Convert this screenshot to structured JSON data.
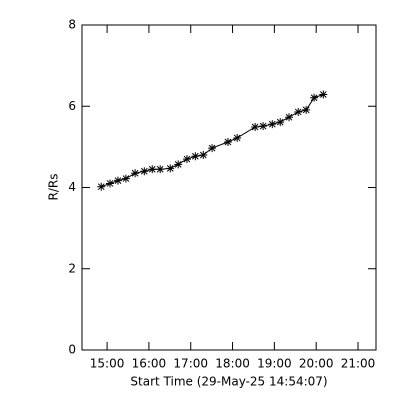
{
  "chart_data": {
    "type": "line",
    "marker": "asterisk",
    "color": "#000000",
    "xlabel": "Start Time (29-May-25 14:54:07)",
    "ylabel": "R/Rs",
    "x": [
      14.86,
      15.07,
      15.26,
      15.45,
      15.67,
      15.89,
      16.08,
      16.27,
      16.51,
      16.7,
      16.91,
      17.11,
      17.3,
      17.51,
      17.89,
      18.11,
      18.54,
      18.73,
      18.95,
      19.14,
      19.35,
      19.57,
      19.76,
      19.95,
      20.17
    ],
    "values": [
      4.02,
      4.1,
      4.17,
      4.22,
      4.35,
      4.4,
      4.45,
      4.45,
      4.47,
      4.57,
      4.7,
      4.77,
      4.8,
      4.97,
      5.12,
      5.22,
      5.49,
      5.51,
      5.56,
      5.61,
      5.73,
      5.86,
      5.91,
      6.21,
      6.29
    ],
    "xlim": [
      14.4,
      21.43
    ],
    "xticks": [
      {
        "value": 15,
        "label": "15:00"
      },
      {
        "value": 16,
        "label": "16:00"
      },
      {
        "value": 17,
        "label": "17:00"
      },
      {
        "value": 18,
        "label": "18:00"
      },
      {
        "value": 19,
        "label": "19:00"
      },
      {
        "value": 20,
        "label": "20:00"
      },
      {
        "value": 21,
        "label": "21:00"
      }
    ],
    "ylim": [
      0,
      8
    ],
    "yticks": [
      0,
      2,
      4,
      6,
      8
    ]
  }
}
